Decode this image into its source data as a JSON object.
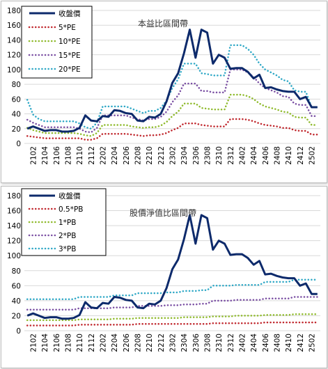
{
  "chart_data": [
    {
      "type": "line",
      "title": "本益比區間帶",
      "x": [
        "2101",
        "2102",
        "2103",
        "2104",
        "2105",
        "2106",
        "2107",
        "2108",
        "2109",
        "2110",
        "2111",
        "2112",
        "2201",
        "2202",
        "2203",
        "2204",
        "2205",
        "2206",
        "2207",
        "2208",
        "2209",
        "2210",
        "2211",
        "2212",
        "2301",
        "2302",
        "2303",
        "2304",
        "2305",
        "2306",
        "2307",
        "2308",
        "2309",
        "2310",
        "2311",
        "2312",
        "2401",
        "2402",
        "2403",
        "2404",
        "2405",
        "2406",
        "2407",
        "2408",
        "2409",
        "2410",
        "2411",
        "2412",
        "2501",
        "2502",
        "2503"
      ],
      "x_tick_labels": [
        "2102",
        "2104",
        "2106",
        "2108",
        "2110",
        "2112",
        "2202",
        "2204",
        "2206",
        "2208",
        "2210",
        "2212",
        "2302",
        "2304",
        "2306",
        "2308",
        "2310",
        "2312",
        "2402",
        "2404",
        "2406",
        "2408",
        "2410",
        "2412",
        "2502"
      ],
      "ylim": [
        0,
        180
      ],
      "y_ticks": [
        0,
        20,
        40,
        60,
        80,
        100,
        120,
        140,
        160,
        180
      ],
      "grid": true,
      "legend_position": "top-left",
      "series": [
        {
          "name": "收盤價",
          "color": "#0d2a6b",
          "dash": "solid",
          "width": 3,
          "values": [
            20,
            23,
            20,
            17,
            18,
            18,
            16,
            16,
            17,
            21,
            38,
            31,
            30,
            37,
            36,
            45,
            44,
            41,
            40,
            31,
            30,
            36,
            35,
            40,
            57,
            82,
            95,
            122,
            154,
            116,
            154,
            150,
            108,
            120,
            116,
            101,
            102,
            102,
            97,
            88,
            93,
            75,
            76,
            73,
            71,
            70,
            70,
            60,
            63,
            49,
            49
          ]
        },
        {
          "name": "5*PE",
          "color": "#c0272d",
          "dash": "dot",
          "width": 2.5,
          "values": [
            10,
            9,
            8,
            7,
            7,
            7,
            7,
            7,
            7,
            7,
            5,
            5,
            7,
            13,
            13,
            13,
            13,
            13,
            12,
            11,
            10,
            11,
            11,
            12,
            14,
            18,
            21,
            27,
            27,
            27,
            25,
            24,
            23,
            23,
            23,
            33,
            33,
            33,
            32,
            30,
            27,
            25,
            24,
            23,
            21,
            21,
            18,
            17,
            17,
            12,
            12
          ]
        },
        {
          "name": "10*PE",
          "color": "#8fba2c",
          "dash": "dot",
          "width": 2.5,
          "values": [
            21,
            18,
            16,
            14,
            14,
            14,
            14,
            14,
            14,
            13,
            11,
            10,
            14,
            25,
            25,
            25,
            25,
            25,
            23,
            22,
            21,
            22,
            22,
            24,
            29,
            37,
            43,
            54,
            54,
            54,
            48,
            47,
            46,
            46,
            46,
            66,
            66,
            66,
            64,
            60,
            54,
            50,
            48,
            46,
            43,
            42,
            36,
            35,
            35,
            25,
            25
          ]
        },
        {
          "name": "15*PE",
          "color": "#7a4fa3",
          "dash": "dot",
          "width": 2.5,
          "values": [
            32,
            28,
            25,
            22,
            22,
            22,
            22,
            22,
            22,
            20,
            16,
            15,
            21,
            38,
            38,
            38,
            38,
            38,
            35,
            33,
            31,
            33,
            33,
            36,
            43,
            56,
            65,
            81,
            81,
            81,
            71,
            71,
            69,
            69,
            69,
            100,
            100,
            100,
            96,
            90,
            81,
            75,
            72,
            69,
            64,
            63,
            54,
            52,
            52,
            37,
            37
          ]
        },
        {
          "name": "20*PE",
          "color": "#2fa8c6",
          "dash": "dot",
          "width": 2.5,
          "values": [
            59,
            39,
            33,
            30,
            30,
            30,
            30,
            30,
            30,
            27,
            22,
            20,
            28,
            50,
            50,
            50,
            50,
            50,
            47,
            44,
            41,
            44,
            44,
            48,
            58,
            75,
            87,
            108,
            108,
            108,
            95,
            94,
            92,
            92,
            92,
            133,
            133,
            133,
            128,
            120,
            108,
            100,
            96,
            92,
            86,
            84,
            72,
            70,
            70,
            49,
            49
          ]
        }
      ]
    },
    {
      "type": "line",
      "title": "股價淨值比區間帶",
      "x": [
        "2101",
        "2102",
        "2103",
        "2104",
        "2105",
        "2106",
        "2107",
        "2108",
        "2109",
        "2110",
        "2111",
        "2112",
        "2201",
        "2202",
        "2203",
        "2204",
        "2205",
        "2206",
        "2207",
        "2208",
        "2209",
        "2210",
        "2211",
        "2212",
        "2301",
        "2302",
        "2303",
        "2304",
        "2305",
        "2306",
        "2307",
        "2308",
        "2309",
        "2310",
        "2311",
        "2312",
        "2401",
        "2402",
        "2403",
        "2404",
        "2405",
        "2406",
        "2407",
        "2408",
        "2409",
        "2410",
        "2411",
        "2412",
        "2501",
        "2502",
        "2503"
      ],
      "x_tick_labels": [
        "2102",
        "2104",
        "2106",
        "2108",
        "2110",
        "2112",
        "2202",
        "2204",
        "2206",
        "2208",
        "2210",
        "2212",
        "2302",
        "2304",
        "2306",
        "2308",
        "2310",
        "2312",
        "2402",
        "2404",
        "2406",
        "2408",
        "2410",
        "2412",
        "2502"
      ],
      "ylim": [
        0,
        180
      ],
      "y_ticks": [
        0,
        20,
        40,
        60,
        80,
        100,
        120,
        140,
        160,
        180
      ],
      "grid": true,
      "legend_position": "top-left",
      "series": [
        {
          "name": "收盤價",
          "color": "#0d2a6b",
          "dash": "solid",
          "width": 3,
          "values": [
            20,
            23,
            20,
            17,
            18,
            18,
            16,
            16,
            17,
            21,
            38,
            31,
            30,
            37,
            36,
            45,
            44,
            41,
            40,
            31,
            30,
            36,
            35,
            40,
            57,
            82,
            95,
            122,
            154,
            116,
            154,
            150,
            108,
            120,
            116,
            101,
            102,
            102,
            97,
            88,
            93,
            75,
            76,
            73,
            71,
            70,
            70,
            60,
            63,
            49,
            49
          ]
        },
        {
          "name": "0.5*PB",
          "color": "#c0272d",
          "dash": "dot",
          "width": 2.5,
          "values": [
            7,
            7,
            7,
            7,
            7,
            7,
            7,
            7,
            7,
            8,
            8,
            8,
            8,
            8,
            8,
            8,
            8,
            8,
            8,
            9,
            9,
            9,
            9,
            9,
            9,
            9,
            9,
            9,
            9,
            9,
            9,
            9,
            10,
            10,
            10,
            10,
            10,
            10,
            10,
            10,
            10,
            11,
            11,
            11,
            11,
            11,
            11,
            11,
            11,
            11,
            11
          ]
        },
        {
          "name": "1*PB",
          "color": "#8fba2c",
          "dash": "dot",
          "width": 2.5,
          "values": [
            14,
            14,
            14,
            14,
            14,
            14,
            14,
            14,
            14,
            15,
            15,
            15,
            15,
            15,
            15,
            16,
            16,
            16,
            16,
            17,
            17,
            17,
            17,
            17,
            17,
            17,
            17,
            18,
            18,
            18,
            18,
            18,
            19,
            19,
            19,
            19,
            20,
            20,
            20,
            20,
            20,
            21,
            21,
            21,
            21,
            21,
            22,
            22,
            22,
            22,
            22
          ]
        },
        {
          "name": "2*PB",
          "color": "#7a4fa3",
          "dash": "dot",
          "width": 2.5,
          "values": [
            28,
            28,
            28,
            28,
            28,
            28,
            28,
            28,
            28,
            30,
            30,
            30,
            30,
            30,
            30,
            31,
            31,
            31,
            31,
            33,
            33,
            33,
            33,
            33,
            34,
            34,
            34,
            35,
            35,
            35,
            36,
            36,
            40,
            40,
            40,
            40,
            41,
            41,
            41,
            41,
            41,
            43,
            43,
            43,
            43,
            43,
            45,
            45,
            45,
            45,
            45
          ]
        },
        {
          "name": "3*PB",
          "color": "#2fa8c6",
          "dash": "dot",
          "width": 2.5,
          "values": [
            42,
            42,
            42,
            42,
            42,
            42,
            42,
            42,
            42,
            45,
            45,
            45,
            45,
            45,
            45,
            47,
            47,
            47,
            47,
            50,
            50,
            50,
            50,
            50,
            51,
            51,
            51,
            53,
            53,
            53,
            54,
            54,
            60,
            60,
            60,
            60,
            61,
            61,
            61,
            61,
            61,
            65,
            65,
            65,
            65,
            65,
            68,
            68,
            68,
            68,
            68
          ]
        }
      ]
    }
  ]
}
